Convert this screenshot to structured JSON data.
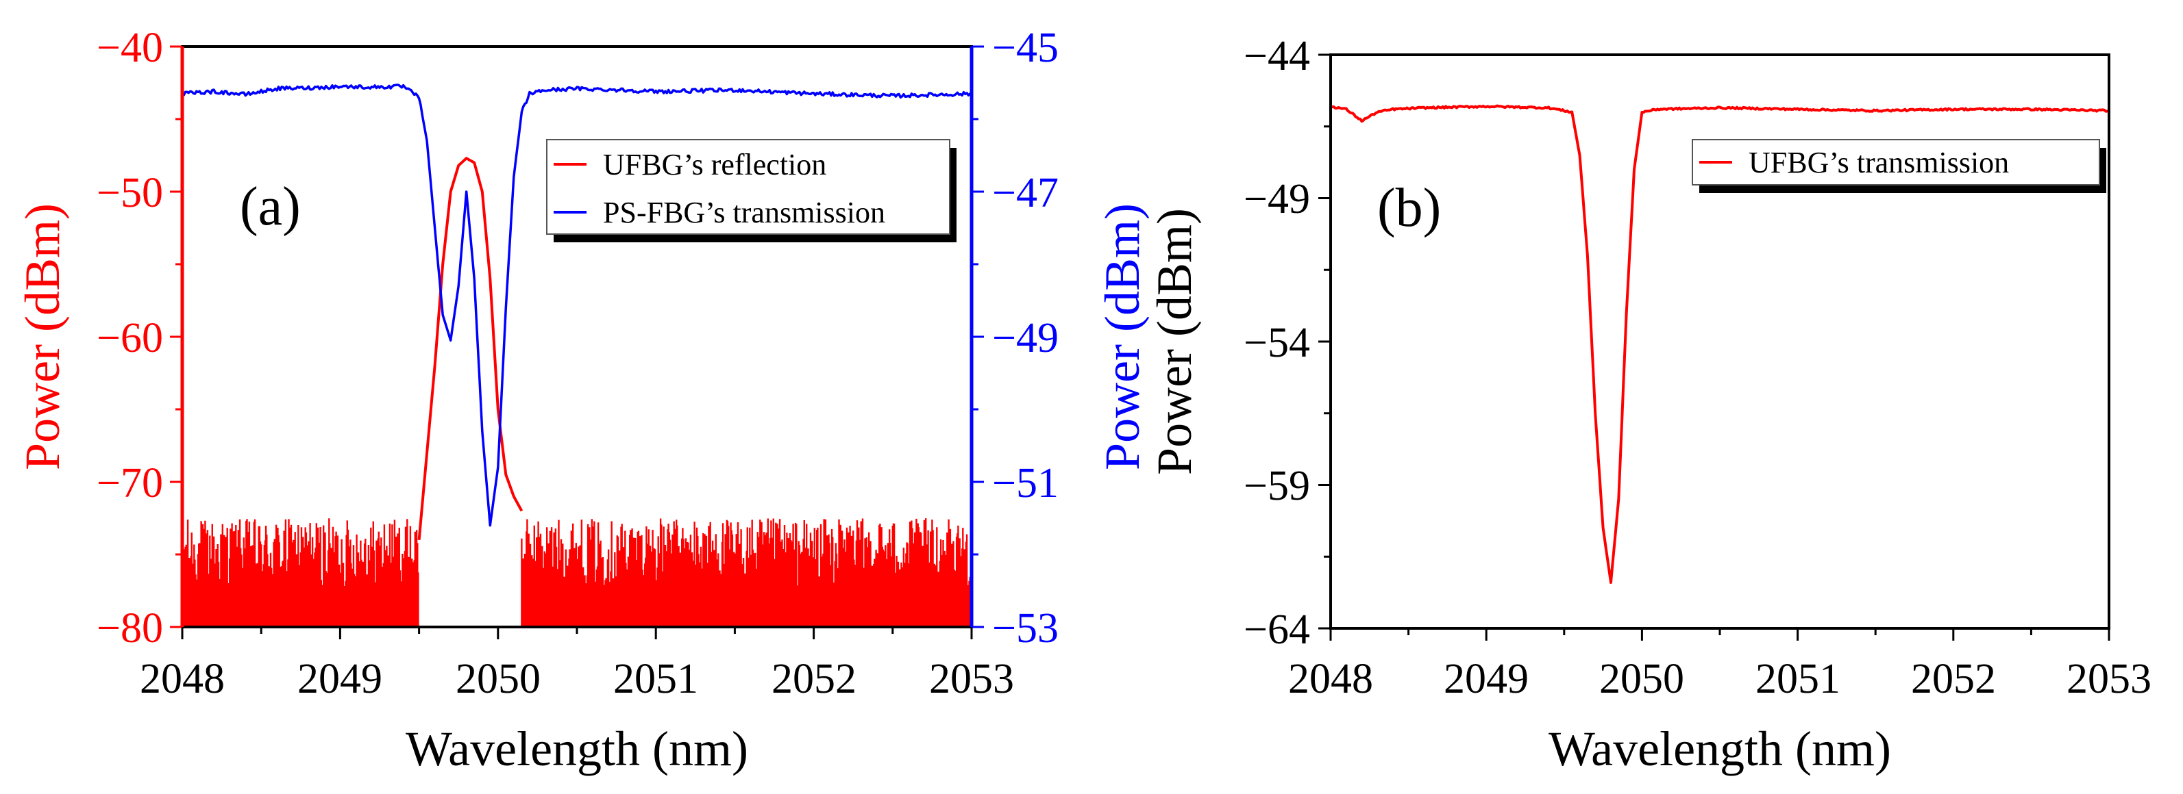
{
  "colors": {
    "red": "#ff0000",
    "blue": "#0000ff",
    "black": "#000000"
  },
  "chart_data": [
    {
      "type": "line",
      "panel_label": "(a)",
      "xlabel": "Wavelength (nm)",
      "ylabel_left": "Power (dBm)",
      "ylabel_right": "Power (dBm)",
      "xlim": [
        2048,
        2053
      ],
      "ylim_left": [
        -80,
        -40
      ],
      "ylim_right": [
        -53,
        -45
      ],
      "x_ticks": [
        "2048",
        "2049",
        "2050",
        "2051",
        "2052",
        "2053"
      ],
      "y_left_ticks": [
        "−40",
        "−50",
        "−60",
        "−70",
        "−80"
      ],
      "y_right_ticks": [
        "−45",
        "−47",
        "−49",
        "−51",
        "−53"
      ],
      "legend_position": "top-right",
      "series": [
        {
          "name": "UFBG’s reflection",
          "axis": "left",
          "color": "#ff0000",
          "noise_floor": {
            "x_start": 2048.0,
            "x_end": 2053.0,
            "gap_start": 2049.5,
            "gap_end": 2050.15,
            "y_min": -80,
            "y_max": -72.5
          },
          "x": [
            2049.5,
            2049.55,
            2049.6,
            2049.65,
            2049.7,
            2049.75,
            2049.8,
            2049.85,
            2049.9,
            2049.95,
            2050.0,
            2050.05,
            2050.1,
            2050.15
          ],
          "y": [
            -74,
            -68,
            -62,
            -55,
            -50,
            -48.2,
            -47.7,
            -48.0,
            -50,
            -56,
            -65,
            -69.5,
            -71,
            -72
          ]
        },
        {
          "name": "PS-FBG’s transmission",
          "axis": "right",
          "color": "#0000ff",
          "x": [
            2048.0,
            2048.2,
            2048.4,
            2048.6,
            2048.8,
            2049.0,
            2049.2,
            2049.4,
            2049.5,
            2049.55,
            2049.6,
            2049.65,
            2049.7,
            2049.75,
            2049.8,
            2049.85,
            2049.9,
            2049.95,
            2050.0,
            2050.05,
            2050.1,
            2050.15,
            2050.2,
            2050.3,
            2050.5,
            2050.8,
            2051.0,
            2051.5,
            2052.0,
            2052.5,
            2053.0
          ],
          "y": [
            -45.65,
            -45.62,
            -45.66,
            -45.58,
            -45.57,
            -45.55,
            -45.56,
            -45.55,
            -45.7,
            -46.3,
            -47.5,
            -48.7,
            -49.05,
            -48.3,
            -47.0,
            -48.2,
            -50.3,
            -51.6,
            -50.8,
            -48.6,
            -46.8,
            -45.9,
            -45.65,
            -45.6,
            -45.58,
            -45.6,
            -45.62,
            -45.6,
            -45.65,
            -45.68,
            -45.65
          ]
        }
      ]
    },
    {
      "type": "line",
      "panel_label": "(b)",
      "xlabel": "Wavelength (nm)",
      "ylabel": "Power (dBm)",
      "xlim": [
        2048,
        2053
      ],
      "ylim": [
        -64,
        -44
      ],
      "x_ticks": [
        "2048",
        "2049",
        "2050",
        "2051",
        "2052",
        "2053"
      ],
      "y_ticks": [
        "−44",
        "−49",
        "−54",
        "−59",
        "−64"
      ],
      "legend_position": "top-right",
      "series": [
        {
          "name": "UFBG’s transmission",
          "color": "#ff0000",
          "x": [
            2048.0,
            2048.1,
            2048.2,
            2048.3,
            2048.4,
            2048.6,
            2049.0,
            2049.4,
            2049.55,
            2049.6,
            2049.65,
            2049.7,
            2049.75,
            2049.8,
            2049.85,
            2049.9,
            2049.95,
            2050.0,
            2050.1,
            2050.5,
            2051.0,
            2051.5,
            2052.0,
            2052.5,
            2053.0
          ],
          "y": [
            -45.8,
            -45.9,
            -46.3,
            -46.0,
            -45.9,
            -45.85,
            -45.8,
            -45.85,
            -46.0,
            -47.5,
            -51.0,
            -56.5,
            -60.5,
            -62.4,
            -59.5,
            -53.0,
            -48.0,
            -46.0,
            -45.9,
            -45.85,
            -45.9,
            -45.95,
            -45.9,
            -45.9,
            -45.95
          ]
        }
      ]
    }
  ]
}
